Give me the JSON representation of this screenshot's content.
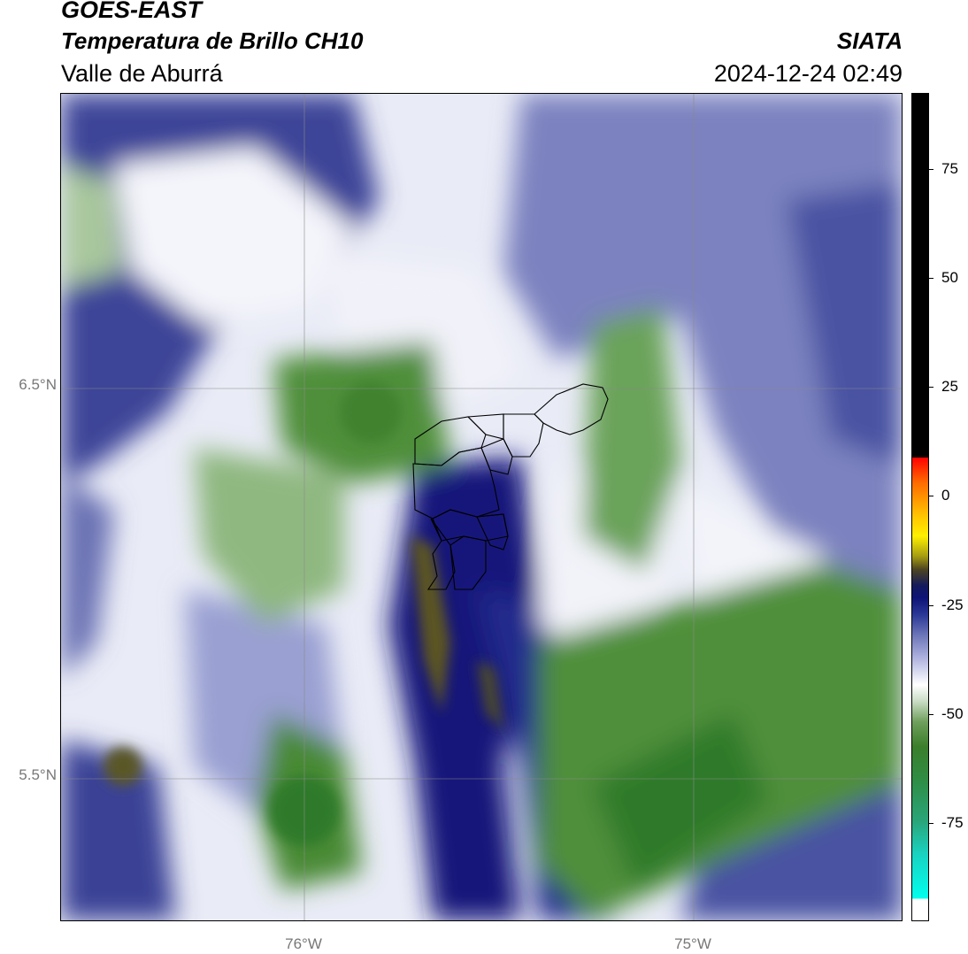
{
  "header": {
    "satellite": "GOES-EAST",
    "product": "Temperatura de Brillo CH10",
    "region": "Valle de Aburrá",
    "brand": "SIATA",
    "timestamp": "2024-12-24 02:49"
  },
  "map": {
    "latitude_labels": [
      "6.5°N",
      "5.5°N"
    ],
    "longitude_labels": [
      "76°W",
      "75°W"
    ],
    "gridlines": true,
    "basemap": "brightness-temperature-field"
  },
  "colorbar": {
    "ticks": [
      75,
      50,
      25,
      0,
      -25,
      -50,
      -75
    ],
    "tick_labels": [
      "75",
      "50",
      "25",
      "0",
      "-25",
      "-50",
      "-75"
    ],
    "range": [
      -95,
      90
    ],
    "colors": {
      "warm": "#000000",
      "red": "#ff0000",
      "yellow": "#fff000",
      "navy": "#0e1477",
      "white": "#ffffff",
      "green": "#3b7e2b",
      "cyan": "#00ffef"
    }
  }
}
